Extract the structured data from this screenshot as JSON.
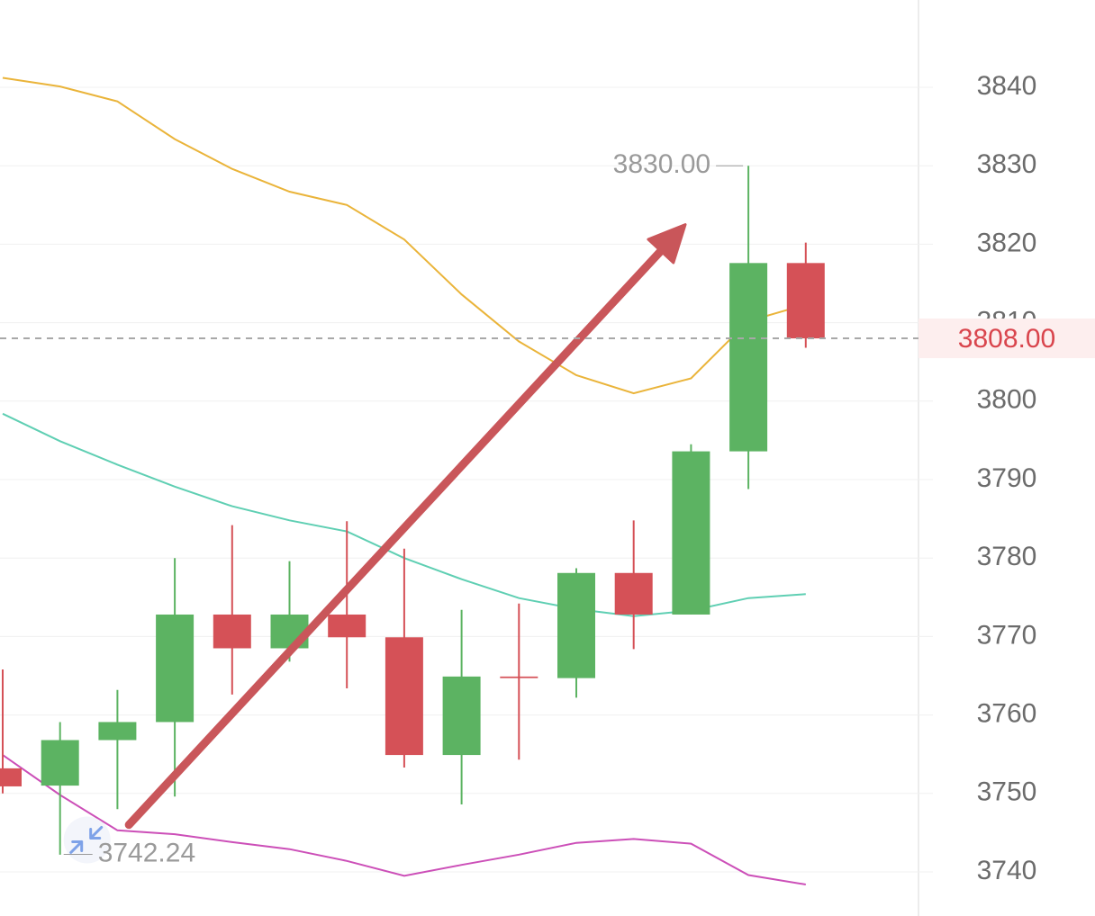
{
  "chart_data": {
    "type": "candlestick",
    "ylim": [
      3736,
      3851
    ],
    "yticks": [
      3740,
      3750,
      3760,
      3770,
      3780,
      3790,
      3800,
      3810,
      3820,
      3830,
      3840
    ],
    "grid": true,
    "candles": [
      {
        "open": 3753.2,
        "close": 3750.9,
        "high": 3765.8,
        "low": 3750.0
      },
      {
        "open": 3751.0,
        "close": 3756.8,
        "high": 3759.1,
        "low": 3742.2
      },
      {
        "open": 3756.8,
        "close": 3759.1,
        "high": 3763.2,
        "low": 3748.0
      },
      {
        "open": 3759.1,
        "close": 3772.8,
        "high": 3780.0,
        "low": 3749.6
      },
      {
        "open": 3772.8,
        "close": 3768.5,
        "high": 3784.2,
        "low": 3762.6
      },
      {
        "open": 3768.5,
        "close": 3772.8,
        "high": 3779.6,
        "low": 3766.8
      },
      {
        "open": 3772.8,
        "close": 3769.9,
        "high": 3784.7,
        "low": 3763.4
      },
      {
        "open": 3769.9,
        "close": 3754.9,
        "high": 3781.2,
        "low": 3753.3
      },
      {
        "open": 3754.9,
        "close": 3764.9,
        "high": 3773.4,
        "low": 3748.6
      },
      {
        "open": 3764.9,
        "close": 3764.7,
        "high": 3774.2,
        "low": 3754.3
      },
      {
        "open": 3764.7,
        "close": 3778.1,
        "high": 3778.7,
        "low": 3762.2
      },
      {
        "open": 3778.1,
        "close": 3772.8,
        "high": 3784.8,
        "low": 3768.4
      },
      {
        "open": 3772.8,
        "close": 3793.6,
        "high": 3794.5,
        "low": 3772.8
      },
      {
        "open": 3793.6,
        "close": 3817.6,
        "high": 3830.0,
        "low": 3788.8
      },
      {
        "open": 3817.6,
        "close": 3808.0,
        "high": 3820.2,
        "low": 3806.8
      }
    ],
    "bands": {
      "upper": [
        3841.2,
        3840.1,
        3838.2,
        3833.4,
        3829.6,
        3826.7,
        3825.0,
        3820.6,
        3813.6,
        3807.6,
        3803.3,
        3801.0,
        3802.9,
        3810.2,
        3812.3
      ],
      "middle": [
        3798.4,
        3794.9,
        3791.9,
        3789.1,
        3786.6,
        3784.8,
        3783.4,
        3780.0,
        3777.3,
        3774.9,
        3773.5,
        3772.6,
        3773.3,
        3774.9,
        3775.4
      ],
      "lower": [
        3754.9,
        3749.8,
        3745.3,
        3744.8,
        3743.8,
        3742.9,
        3741.4,
        3739.5,
        3740.9,
        3742.2,
        3743.7,
        3744.2,
        3743.6,
        3739.6,
        3738.4
      ]
    },
    "current_price": "3808.00",
    "current_price_value": 3808.0,
    "annotations": {
      "high_label": "3830.00",
      "high_value": 3830.0,
      "low_label": "3742.24",
      "low_value": 3742.24
    },
    "trend_arrow": {
      "from_index": 2.2,
      "from_value": 3746.0,
      "to_index": 11.9,
      "to_value": 3822.5
    }
  },
  "colors": {
    "up": "#5cb362",
    "down": "#d55157",
    "upper_band": "#eab43a",
    "middle_band": "#5fcfb3",
    "lower_band": "#cc4fb8",
    "arrow": "#c9565a",
    "grid": "#f0f0f0",
    "axis_text": "#6b6b6b",
    "current_price_text": "#d9454d",
    "current_price_bg": "#fdeeee",
    "annotation_text": "#9a9a9a",
    "low_icon": "#7ea2e8"
  },
  "icons": {
    "low_marker": "collapse-arrows-icon"
  }
}
